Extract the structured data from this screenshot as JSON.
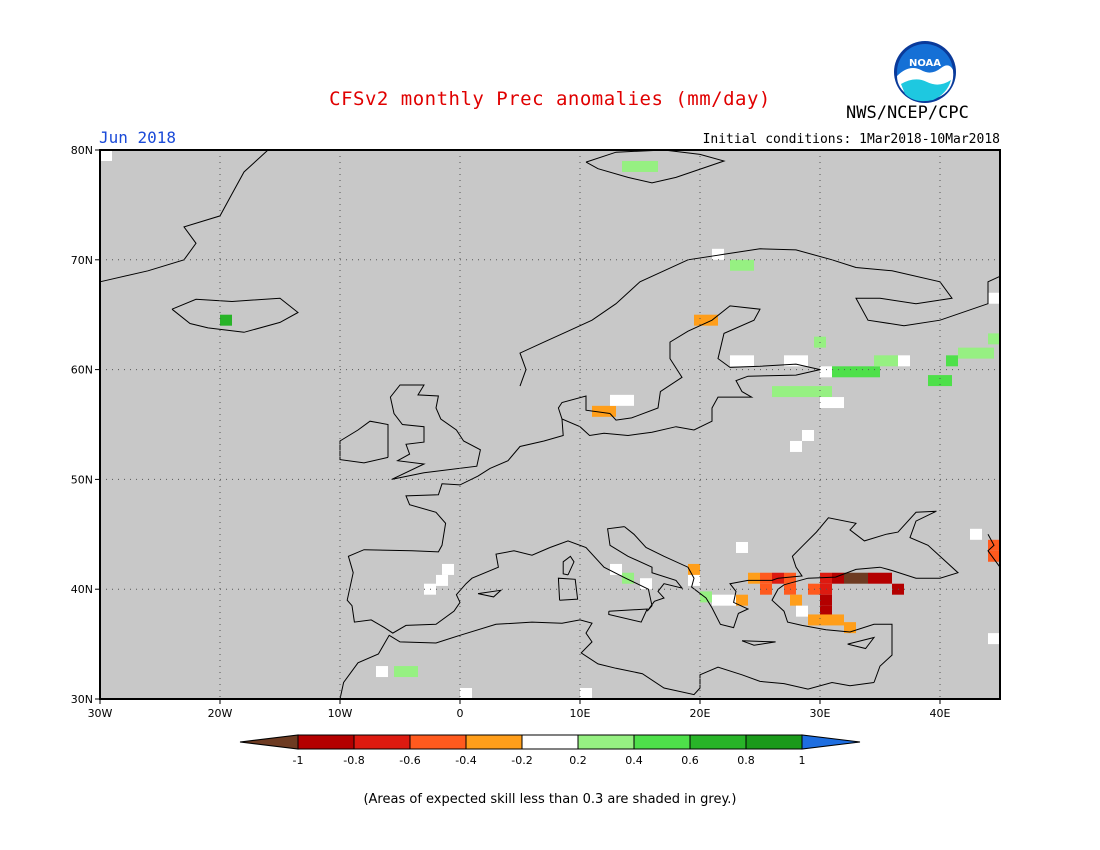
{
  "header": {
    "title": "CFSv2 monthly Prec anomalies (mm/day)",
    "agency": "NWS/NCEP/CPC",
    "period": "Jun 2018",
    "initial_conditions": "Initial conditions: 1Mar2018-10Mar2018",
    "logo_text": "NOAA"
  },
  "map": {
    "lon_range": [
      -30,
      45
    ],
    "lat_range": [
      30,
      80
    ],
    "x_ticks": [
      "30W",
      "20W",
      "10W",
      "0",
      "10E",
      "20E",
      "30E",
      "40E"
    ],
    "y_ticks": [
      "80N",
      "70N",
      "60N",
      "50N",
      "40N",
      "30N"
    ],
    "background_color": "#c8c8c8",
    "gridlines": true,
    "anomaly_cells": [
      {
        "lon": -29.5,
        "lat": 79.5,
        "value": 0
      },
      {
        "lon": -19.5,
        "lat": 64.5,
        "value": 0.7
      },
      {
        "lon": 14,
        "lat": 78.5,
        "value": 0.3
      },
      {
        "lon": 15,
        "lat": 78.5,
        "value": 0.3
      },
      {
        "lon": 16,
        "lat": 78.5,
        "value": 0.3
      },
      {
        "lon": 23,
        "lat": 69.5,
        "value": 0.3
      },
      {
        "lon": 24,
        "lat": 69.5,
        "value": 0.3
      },
      {
        "lon": 21.5,
        "lat": 70.5,
        "value": 0
      },
      {
        "lon": 20,
        "lat": 64.5,
        "value": -0.3
      },
      {
        "lon": 21,
        "lat": 64.5,
        "value": -0.3
      },
      {
        "lon": 23,
        "lat": 60.8,
        "value": 0
      },
      {
        "lon": 24,
        "lat": 60.8,
        "value": 0
      },
      {
        "lon": 27.5,
        "lat": 60.8,
        "value": 0
      },
      {
        "lon": 28.5,
        "lat": 60.8,
        "value": 0
      },
      {
        "lon": 30,
        "lat": 62.5,
        "value": 0.3
      },
      {
        "lon": 30.5,
        "lat": 59.8,
        "value": 0
      },
      {
        "lon": 31.5,
        "lat": 59.8,
        "value": 0.5
      },
      {
        "lon": 32.5,
        "lat": 59.8,
        "value": 0.5
      },
      {
        "lon": 33.5,
        "lat": 59.8,
        "value": 0.5
      },
      {
        "lon": 34.5,
        "lat": 59.8,
        "value": 0.5
      },
      {
        "lon": 35,
        "lat": 60.8,
        "value": 0.3
      },
      {
        "lon": 36,
        "lat": 60.8,
        "value": 0.3
      },
      {
        "lon": 37,
        "lat": 60.8,
        "value": 0
      },
      {
        "lon": 26.5,
        "lat": 58.0,
        "value": 0.3
      },
      {
        "lon": 27.5,
        "lat": 58.0,
        "value": 0.3
      },
      {
        "lon": 28.5,
        "lat": 58.0,
        "value": 0.3
      },
      {
        "lon": 29.5,
        "lat": 58.0,
        "value": 0.3
      },
      {
        "lon": 30.5,
        "lat": 58.0,
        "value": 0.3
      },
      {
        "lon": 30.5,
        "lat": 57.0,
        "value": 0
      },
      {
        "lon": 31.5,
        "lat": 57.0,
        "value": 0
      },
      {
        "lon": 29,
        "lat": 54.0,
        "value": 0
      },
      {
        "lon": 28,
        "lat": 53.0,
        "value": 0
      },
      {
        "lon": 39.5,
        "lat": 59.0,
        "value": 0.5
      },
      {
        "lon": 40.5,
        "lat": 59.0,
        "value": 0.5
      },
      {
        "lon": 41,
        "lat": 60.8,
        "value": 0.5
      },
      {
        "lon": 42,
        "lat": 61.5,
        "value": 0.3
      },
      {
        "lon": 43,
        "lat": 61.5,
        "value": 0.3
      },
      {
        "lon": 44,
        "lat": 61.5,
        "value": 0.3
      },
      {
        "lon": 44.5,
        "lat": 62.8,
        "value": 0.3
      },
      {
        "lon": 44.5,
        "lat": 66.5,
        "value": 0
      },
      {
        "lon": 11.5,
        "lat": 56.2,
        "value": -0.3
      },
      {
        "lon": 12.5,
        "lat": 56.2,
        "value": -0.3
      },
      {
        "lon": 13,
        "lat": 57.2,
        "value": 0
      },
      {
        "lon": 14,
        "lat": 57.2,
        "value": 0
      },
      {
        "lon": -1,
        "lat": 41.8,
        "value": 0
      },
      {
        "lon": -1.5,
        "lat": 40.8,
        "value": 0
      },
      {
        "lon": -2.5,
        "lat": 40.0,
        "value": 0
      },
      {
        "lon": -6.5,
        "lat": 32.5,
        "value": 0
      },
      {
        "lon": -5,
        "lat": 32.5,
        "value": 0.3
      },
      {
        "lon": -4,
        "lat": 32.5,
        "value": 0.3
      },
      {
        "lon": 0.5,
        "lat": 30.5,
        "value": 0
      },
      {
        "lon": 10.5,
        "lat": 30.5,
        "value": 0
      },
      {
        "lon": 14,
        "lat": 41.0,
        "value": 0.3
      },
      {
        "lon": 13,
        "lat": 41.8,
        "value": 0
      },
      {
        "lon": 15.5,
        "lat": 40.5,
        "value": 0
      },
      {
        "lon": 19.5,
        "lat": 41.8,
        "value": -0.3
      },
      {
        "lon": 19.5,
        "lat": 40.8,
        "value": 0
      },
      {
        "lon": 20.5,
        "lat": 39.3,
        "value": 0.3
      },
      {
        "lon": 21.5,
        "lat": 39.0,
        "value": 0
      },
      {
        "lon": 22.5,
        "lat": 39.0,
        "value": 0
      },
      {
        "lon": 23.5,
        "lat": 39.0,
        "value": -0.3
      },
      {
        "lon": 23.5,
        "lat": 43.8,
        "value": 0
      },
      {
        "lon": 24.5,
        "lat": 41.0,
        "value": -0.3
      },
      {
        "lon": 25.5,
        "lat": 41.0,
        "value": -0.5
      },
      {
        "lon": 26.5,
        "lat": 41.0,
        "value": -0.7
      },
      {
        "lon": 27.5,
        "lat": 41.0,
        "value": -0.5
      },
      {
        "lon": 25.5,
        "lat": 40.0,
        "value": -0.5
      },
      {
        "lon": 27.5,
        "lat": 40.0,
        "value": -0.5
      },
      {
        "lon": 28.0,
        "lat": 39.0,
        "value": -0.3
      },
      {
        "lon": 29.5,
        "lat": 40.0,
        "value": -0.5
      },
      {
        "lon": 30.5,
        "lat": 40.0,
        "value": -0.7
      },
      {
        "lon": 30.5,
        "lat": 41.0,
        "value": -0.7
      },
      {
        "lon": 31.5,
        "lat": 41.0,
        "value": -0.9
      },
      {
        "lon": 32.5,
        "lat": 41.0,
        "value": -1.1
      },
      {
        "lon": 33.5,
        "lat": 41.0,
        "value": -1.1
      },
      {
        "lon": 34.5,
        "lat": 41.0,
        "value": -0.9
      },
      {
        "lon": 35.5,
        "lat": 41.0,
        "value": -0.9
      },
      {
        "lon": 36.5,
        "lat": 40.0,
        "value": -0.9
      },
      {
        "lon": 30.5,
        "lat": 39.0,
        "value": -0.9
      },
      {
        "lon": 30.5,
        "lat": 38.0,
        "value": -0.9
      },
      {
        "lon": 29.5,
        "lat": 37.2,
        "value": -0.3
      },
      {
        "lon": 30.5,
        "lat": 37.2,
        "value": -0.3
      },
      {
        "lon": 31.5,
        "lat": 37.2,
        "value": -0.3
      },
      {
        "lon": 32.5,
        "lat": 36.5,
        "value": -0.3
      },
      {
        "lon": 28.5,
        "lat": 38.0,
        "value": 0
      },
      {
        "lon": 44.5,
        "lat": 44.0,
        "value": -0.5
      },
      {
        "lon": 44.5,
        "lat": 43.0,
        "value": -0.5
      },
      {
        "lon": 43.0,
        "lat": 45.0,
        "value": 0
      },
      {
        "lon": 44.5,
        "lat": 35.5,
        "value": 0
      }
    ]
  },
  "colorbar": {
    "labels": [
      "-1",
      "-0.8",
      "-0.6",
      "-0.4",
      "-0.2",
      "0.2",
      "0.4",
      "0.6",
      "0.8",
      "1"
    ],
    "colors": [
      "#6e3b22",
      "#b40000",
      "#dd1a10",
      "#ff5a1e",
      "#ff9e1a",
      "#ffffff",
      "#96f082",
      "#4ee04a",
      "#28b428",
      "#1a9a1a",
      "#1e6ee0"
    ]
  },
  "footnote": "(Areas of expected skill less than 0.3 are shaded in grey.)"
}
